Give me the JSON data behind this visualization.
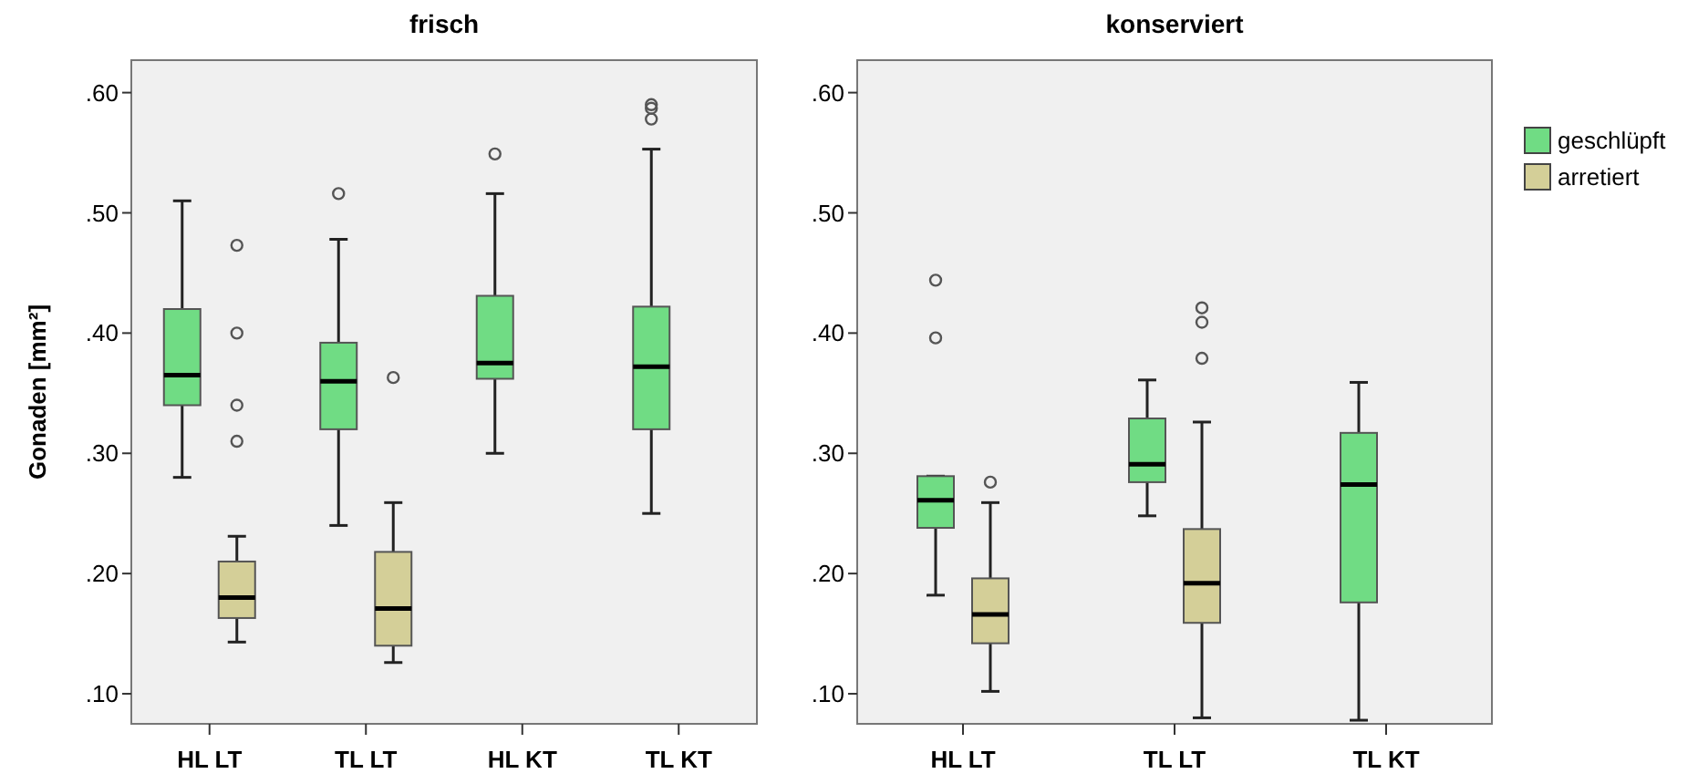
{
  "chart_data": [
    {
      "type": "box",
      "title": "frisch",
      "ylabel": "Gonaden [mm²]",
      "categories": [
        "HL LT",
        "TL LT",
        "HL KT",
        "TL KT"
      ],
      "ylim": [
        0.075,
        0.627
      ],
      "yticks": [
        {
          "value": 0.1,
          "label": ".10"
        },
        {
          "value": 0.2,
          "label": ".20"
        },
        {
          "value": 0.3,
          "label": ".30"
        },
        {
          "value": 0.4,
          "label": ".40"
        },
        {
          "value": 0.5,
          "label": ".50"
        },
        {
          "value": 0.6,
          "label": ".60"
        }
      ],
      "grid": false,
      "legend": false,
      "series": [
        {
          "color": "#70dc84",
          "boxes": [
            {
              "low": 0.28,
              "q1": 0.34,
              "median": 0.365,
              "q3": 0.42,
              "high": 0.51
            },
            {
              "low": 0.24,
              "q1": 0.32,
              "median": 0.36,
              "q3": 0.392,
              "high": 0.478,
              "outliers": [
                0.516
              ]
            },
            {
              "low": 0.3,
              "q1": 0.362,
              "median": 0.375,
              "q3": 0.431,
              "high": 0.516,
              "outliers": [
                0.549
              ]
            },
            {
              "low": 0.25,
              "q1": 0.32,
              "median": 0.372,
              "q3": 0.422,
              "high": 0.553,
              "outliers": [
                0.578,
                0.587,
                0.59
              ]
            }
          ]
        },
        {
          "color": "#d4cf98",
          "boxes": [
            {
              "low": 0.143,
              "q1": 0.163,
              "median": 0.18,
              "q3": 0.21,
              "high": 0.231,
              "outliers": [
                0.31,
                0.34,
                0.4,
                0.473
              ]
            },
            {
              "low": 0.126,
              "q1": 0.14,
              "median": 0.171,
              "q3": 0.218,
              "high": 0.259,
              "outliers": [
                0.363
              ]
            },
            null,
            null
          ]
        }
      ]
    },
    {
      "type": "box",
      "title": "konserviert",
      "categories": [
        "HL LT",
        "TL LT",
        "TL KT"
      ],
      "ylim": [
        0.075,
        0.627
      ],
      "yticks": [
        {
          "value": 0.1,
          "label": ".10"
        },
        {
          "value": 0.2,
          "label": ".20"
        },
        {
          "value": 0.3,
          "label": ".30"
        },
        {
          "value": 0.4,
          "label": ".40"
        },
        {
          "value": 0.5,
          "label": ".50"
        },
        {
          "value": 0.6,
          "label": ".60"
        }
      ],
      "grid": false,
      "legend": "right",
      "series": [
        {
          "name": "geschlüpft",
          "color": "#70dc84",
          "boxes": [
            {
              "low": 0.182,
              "q1": 0.238,
              "median": 0.261,
              "q3": 0.281,
              "high": 0.281,
              "outliers": [
                0.396,
                0.444
              ]
            },
            {
              "low": 0.248,
              "q1": 0.276,
              "median": 0.291,
              "q3": 0.329,
              "high": 0.361
            },
            {
              "low": 0.078,
              "q1": 0.176,
              "median": 0.274,
              "q3": 0.317,
              "high": 0.359
            }
          ]
        },
        {
          "name": "arretiert",
          "color": "#d4cf98",
          "boxes": [
            {
              "low": 0.102,
              "q1": 0.142,
              "median": 0.166,
              "q3": 0.196,
              "high": 0.259,
              "outliers": [
                0.276
              ]
            },
            {
              "low": 0.08,
              "q1": 0.159,
              "median": 0.192,
              "q3": 0.237,
              "high": 0.326,
              "outliers": [
                0.379,
                0.409,
                0.421
              ]
            },
            null
          ]
        }
      ]
    }
  ]
}
